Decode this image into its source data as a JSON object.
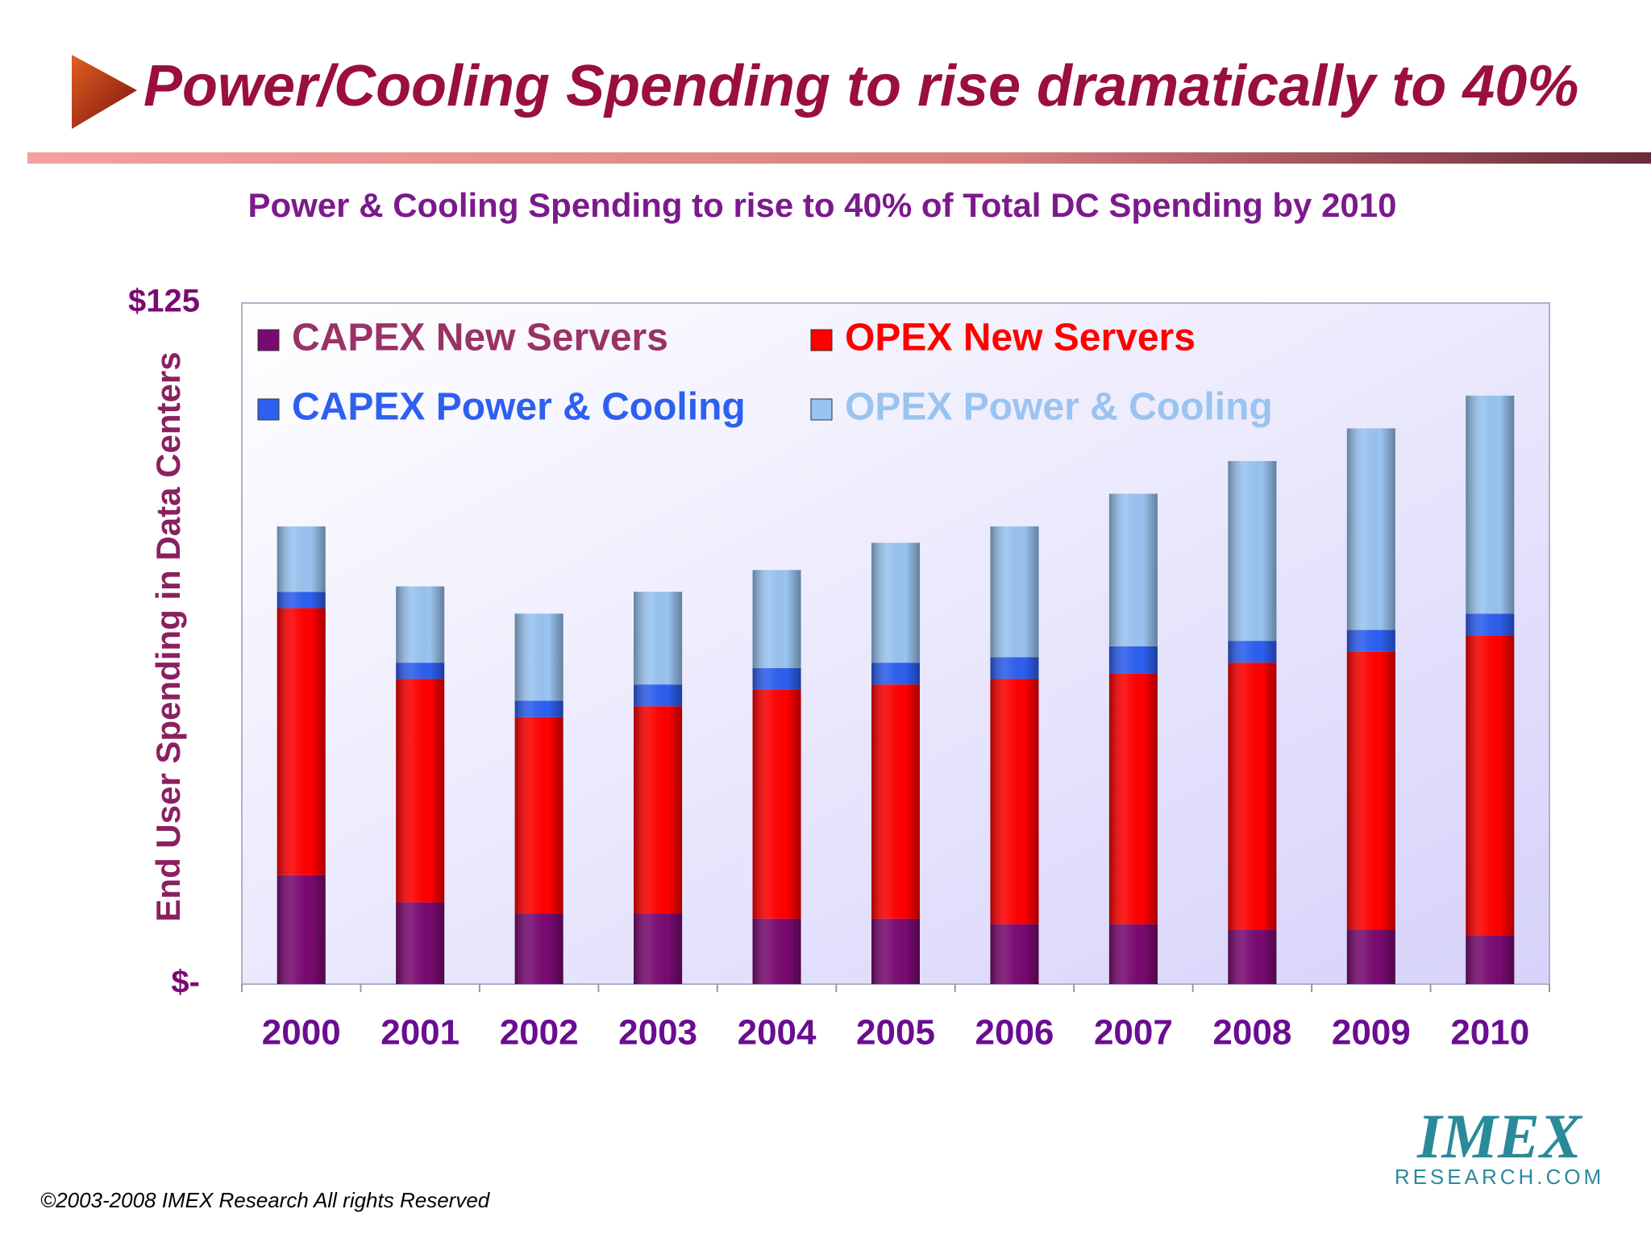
{
  "header": {
    "title": "Power/Cooling Spending to rise dramatically to 40%"
  },
  "chart_data": {
    "type": "stacked-bar",
    "title": "Power & Cooling Spending to rise to 40% of Total DC Spending by 2010",
    "y_label": "End User Spending in Data Centers",
    "categories": [
      "2000",
      "2001",
      "2002",
      "2003",
      "2004",
      "2005",
      "2006",
      "2007",
      "2008",
      "2009",
      "2010"
    ],
    "series": [
      {
        "name": "CAPEX New Servers",
        "color": "#7a0a72",
        "values": [
          20,
          15,
          13,
          13,
          12,
          12,
          11,
          11,
          10,
          10,
          9
        ]
      },
      {
        "name": "OPEX New Servers",
        "color": "#ff0000",
        "values": [
          49,
          41,
          36,
          38,
          42,
          43,
          45,
          46,
          49,
          51,
          55
        ]
      },
      {
        "name": "CAPEX Power & Cooling",
        "color": "#2d5ff0",
        "values": [
          3,
          3,
          3,
          4,
          4,
          4,
          4,
          5,
          4,
          4,
          4
        ]
      },
      {
        "name": "OPEX Power & Cooling",
        "color": "#99c4f0",
        "values": [
          12,
          14,
          16,
          17,
          18,
          22,
          24,
          28,
          33,
          37,
          40
        ]
      }
    ],
    "ylim": [
      0,
      125
    ],
    "yticks": [
      {
        "value": 0,
        "label": "$-"
      },
      {
        "value": 125,
        "label": "$125"
      }
    ],
    "grid": true
  },
  "footer": {
    "copyright": "©2003-2008  IMEX Research All rights Reserved",
    "logo": {
      "name": "IMEX",
      "subtitle": "RESEARCH.COM"
    }
  }
}
